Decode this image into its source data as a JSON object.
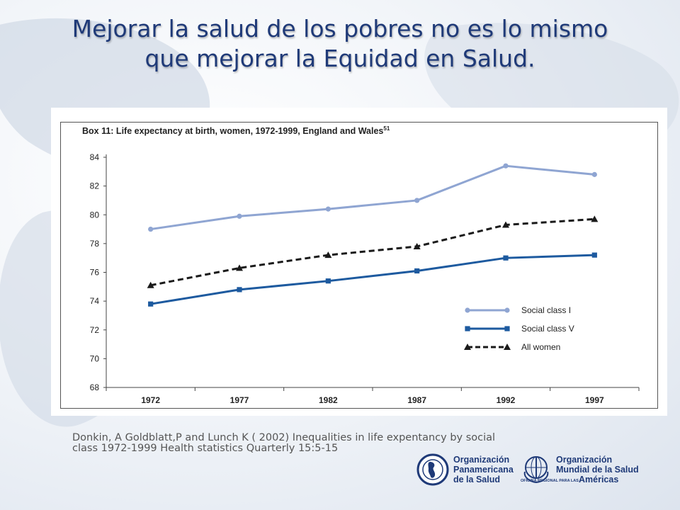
{
  "slide": {
    "title_line1": "Mejorar la salud de los pobres no es lo  mismo",
    "title_line2": "que mejorar la Equidad  en Salud.",
    "citation_line1": "Donkin, A Goldblatt,P and Lunch K ( 2002) Inequalities in life expentancy by social",
    "citation_line2": "class 1972-1999 Health statistics Quarterly 15:5-15"
  },
  "logos": {
    "paho": {
      "line1": "Organización",
      "line2": "Panamericana",
      "line3": "de la Salud"
    },
    "who": {
      "line1": "Organización",
      "line2": "Mundial de la Salud",
      "small": "OFICINA REGIONAL PARA LAS",
      "region": "Américas"
    }
  },
  "colors": {
    "title": "#1f3a78",
    "social_class_1": "#8fa5d2",
    "social_class_5": "#1d5a9f",
    "all_women": "#1a1a1a"
  },
  "chart_data": {
    "type": "line",
    "title": "Box 11: Life expectancy at birth, women, 1972-1999, England and Wales",
    "title_superscript": "51",
    "categories": [
      "1972",
      "1977",
      "1982",
      "1987",
      "1992",
      "1997"
    ],
    "ylim": [
      68,
      84
    ],
    "yticks": [
      68,
      70,
      72,
      74,
      76,
      78,
      80,
      82,
      84
    ],
    "grid": false,
    "legend_position": "bottom-right",
    "series": [
      {
        "name": "Social class I",
        "marker": "circle",
        "line": "solid",
        "color": "#8fa5d2",
        "values": [
          79.0,
          79.9,
          80.4,
          81.0,
          83.4,
          82.8
        ]
      },
      {
        "name": "Social class V",
        "marker": "square",
        "line": "solid",
        "color": "#1d5a9f",
        "values": [
          73.8,
          74.8,
          75.4,
          76.1,
          77.0,
          77.2
        ]
      },
      {
        "name": "All women",
        "marker": "triangle",
        "line": "dashed",
        "color": "#1a1a1a",
        "values": [
          75.1,
          76.3,
          77.2,
          77.8,
          79.3,
          79.7
        ]
      }
    ]
  }
}
